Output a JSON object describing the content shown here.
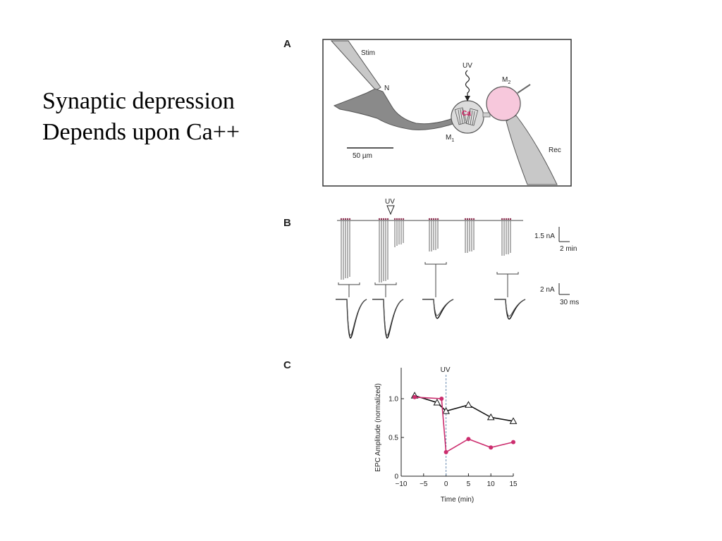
{
  "slide": {
    "title_line1": "Synaptic depression",
    "title_line2": "Depends upon Ca++"
  },
  "panel_a": {
    "letter": "A",
    "labels": {
      "stim": "Stim",
      "neuron": "N",
      "uv": "UV",
      "ca": "Ca",
      "m1": "M",
      "m1_sub": "1",
      "m2": "M",
      "m2_sub": "2",
      "rec": "Rec",
      "scale": "50 µm"
    },
    "colors": {
      "neuron": "#8a8a8a",
      "m2_fill": "#f7c8dc",
      "ca_text": "#d4145a"
    }
  },
  "panel_b": {
    "letter": "B",
    "uv_label": "UV",
    "scale_top_y": "1.5 nA",
    "scale_top_x": "2 min",
    "scale_bottom_y": "2 nA",
    "scale_bottom_x": "30 ms"
  },
  "panel_c": {
    "letter": "C",
    "uv_label": "UV"
  },
  "chart_data": {
    "type": "line",
    "title": "",
    "xlabel": "Time (min)",
    "ylabel": "EPC Amplitude (normalized)",
    "xlim": [
      -10,
      15
    ],
    "ylim": [
      0,
      1.4
    ],
    "xticks": [
      -10,
      -5,
      0,
      5,
      10,
      15
    ],
    "xtick_labels": [
      "−10",
      "−5",
      "0",
      "5",
      "10",
      "15"
    ],
    "yticks": [
      0,
      0.5,
      1.0
    ],
    "ytick_labels": [
      "0",
      "0.5",
      "1.0"
    ],
    "annotation_line_x": 0,
    "series": [
      {
        "marker": "open-triangle",
        "color": "#111111",
        "x": [
          -7,
          -2,
          0,
          5,
          10,
          15
        ],
        "y": [
          1.04,
          0.95,
          0.84,
          0.92,
          0.76,
          0.71
        ]
      },
      {
        "marker": "filled-circle",
        "color": "#cc2d6e",
        "x": [
          -7,
          -1,
          0,
          5,
          10,
          15
        ],
        "y": [
          1.02,
          1.0,
          0.31,
          0.48,
          0.37,
          0.44
        ]
      }
    ]
  }
}
